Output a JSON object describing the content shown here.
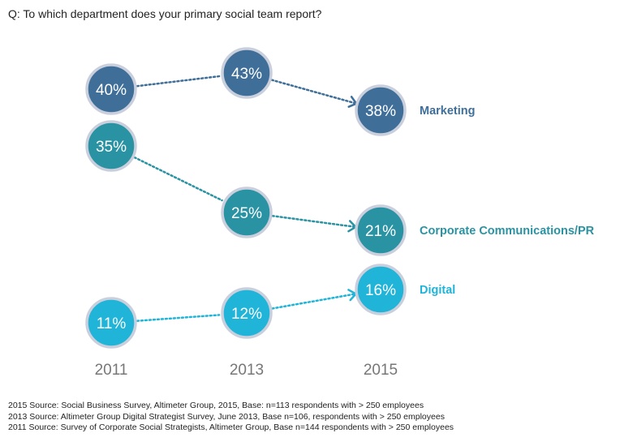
{
  "question": "Q: To which department does your primary social team report?",
  "chart_data": {
    "type": "slope",
    "x": [
      "2011",
      "2013",
      "2015"
    ],
    "value_suffix": "%",
    "series": [
      {
        "name": "Marketing",
        "values": [
          40,
          43,
          38
        ],
        "color": "#3f6f99"
      },
      {
        "name": "Corporate Communications/PR",
        "values": [
          35,
          25,
          21
        ],
        "color": "#2a93a3"
      },
      {
        "name": "Digital",
        "values": [
          11,
          12,
          16
        ],
        "color": "#1fb4d8"
      }
    ]
  },
  "sources": [
    "2015 Source: Social Business Survey, Altimeter Group, 2015, Base: n=113 respondents with > 250 employees",
    "2013 Source: Altimeter Group Digital Strategist Survey, June 2013, Base n=106, respondents with > 250 employees",
    "2011 Source: Survey of Corporate Social Strategists, Altimeter Group, Base n=144 respondents with > 250 employees"
  ]
}
